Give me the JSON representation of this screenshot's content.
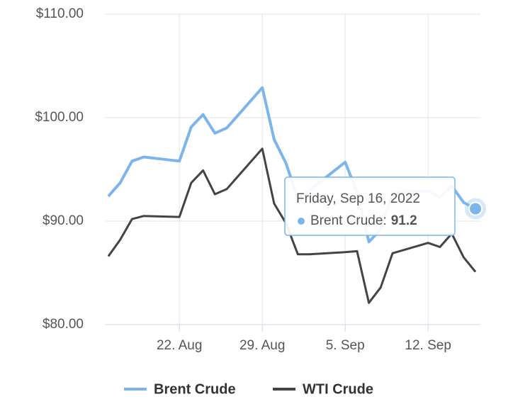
{
  "chart_data": {
    "type": "line",
    "x": [
      "2022-08-16",
      "2022-08-17",
      "2022-08-18",
      "2022-08-19",
      "2022-08-22",
      "2022-08-23",
      "2022-08-24",
      "2022-08-25",
      "2022-08-26",
      "2022-08-29",
      "2022-08-30",
      "2022-08-31",
      "2022-09-01",
      "2022-09-02",
      "2022-09-05",
      "2022-09-06",
      "2022-09-07",
      "2022-09-08",
      "2022-09-09",
      "2022-09-12",
      "2022-09-13",
      "2022-09-14",
      "2022-09-15",
      "2022-09-16"
    ],
    "series": [
      {
        "name": "Brent Crude",
        "color": "#7cb5ec",
        "values": [
          92.4,
          93.7,
          95.8,
          96.2,
          95.8,
          99.1,
          100.3,
          98.5,
          99.0,
          102.9,
          97.9,
          95.6,
          92.2,
          93.0,
          95.7,
          92.8,
          88.0,
          89.2,
          92.8,
          92.9,
          92.3,
          93.4,
          91.8,
          91.2
        ]
      },
      {
        "name": "WTI Crude",
        "color": "#434348",
        "values": [
          86.6,
          88.2,
          90.2,
          90.5,
          90.4,
          93.7,
          94.9,
          92.6,
          93.1,
          97.0,
          91.7,
          89.8,
          86.8,
          86.8,
          87.0,
          87.1,
          82.1,
          83.6,
          86.9,
          87.9,
          87.5,
          88.8,
          86.5,
          85.1
        ]
      }
    ],
    "xlim": [
      "2022-08-15T17:00:00Z",
      "2022-09-16T10:00:00Z"
    ],
    "xticks": [
      {
        "value": "2022-08-22",
        "label": "22. Aug"
      },
      {
        "value": "2022-08-29",
        "label": "29. Aug"
      },
      {
        "value": "2022-09-05",
        "label": "5. Sep"
      },
      {
        "value": "2022-09-12",
        "label": "12. Sep"
      }
    ],
    "ylim": [
      80,
      110
    ],
    "yticks": [
      {
        "value": 80,
        "label": "$80.00"
      },
      {
        "value": 90,
        "label": "$90.00"
      },
      {
        "value": 100,
        "label": "$100.00"
      },
      {
        "value": 110,
        "label": "$110.00"
      }
    ],
    "grid": true,
    "legend": "bottom",
    "tooltip": {
      "title": "Friday, Sep 16, 2022",
      "text": "Brent Crude:"
    }
  }
}
